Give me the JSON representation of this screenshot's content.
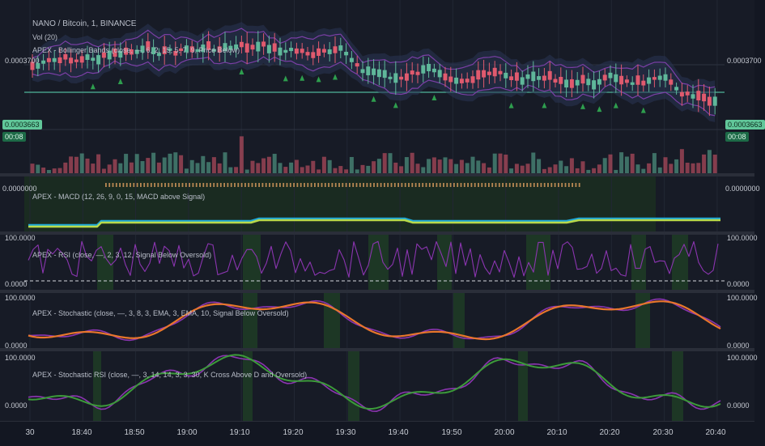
{
  "header": {
    "symbol_line": "NANO / Bitcoin, 1, BINANCE",
    "vol_line": "Vol (20)"
  },
  "main_pane": {
    "indicator_label": "APEX - Bollinger Bands (close, —, 6, 2, 15, 5, 7, 9, Price Below)",
    "price_left": "0.0003700",
    "price_right": "0.0003700",
    "current_price_left": "0.0003663",
    "current_price_right": "0.0003663",
    "countdown_left": "00:08",
    "countdown_right": "00:08"
  },
  "macd_pane": {
    "label": "APEX - MACD (12, 26, 9, 0, 15, MACD above Signal)",
    "axis_left": "0.0000000",
    "axis_right": "0.0000000"
  },
  "rsi_pane": {
    "label": "APEX - RSI (close, —, 2, 3, 12, Signal Below Oversold)",
    "top_left": "100.0000",
    "top_right": "100.0000",
    "bottom_left": "0.0000",
    "bottom_right": "0.0000"
  },
  "stoch_pane": {
    "label": "APEX - Stochastic (close, —, 3, 8, 3, EMA, 3, EMA, 10, Signal Below Oversold)",
    "top_left": "100.0000",
    "top_right": "100.0000",
    "bottom_left": "0.0000",
    "bottom_right": "0.0000"
  },
  "stochrsi_pane": {
    "label": "APEX - Stochastic RSI (close, —, 3, 14, 14, 3, 3, 30, K Cross Above D and Oversold)",
    "top_left": "100.0000",
    "top_right": "100.0000",
    "bottom_left": "0.0000",
    "bottom_right": "0.0000"
  },
  "time_axis": [
    "30",
    "18:40",
    "18:50",
    "19:00",
    "19:10",
    "19:20",
    "19:30",
    "19:40",
    "19:50",
    "20:00",
    "20:10",
    "20:20",
    "20:30",
    "20:40"
  ],
  "colors": {
    "background": "#131722",
    "candle_up": "#5fb79a",
    "candle_down": "#e05a6e",
    "band": "#7b3fa6",
    "macd_line": "#1ea7d6",
    "signal_line": "#b8d94a",
    "rsi_line": "#8b35b0",
    "stoch_k": "#e8762c",
    "stochrsi_k": "#3c9a3a",
    "arrow": "#2e9e4e"
  }
}
